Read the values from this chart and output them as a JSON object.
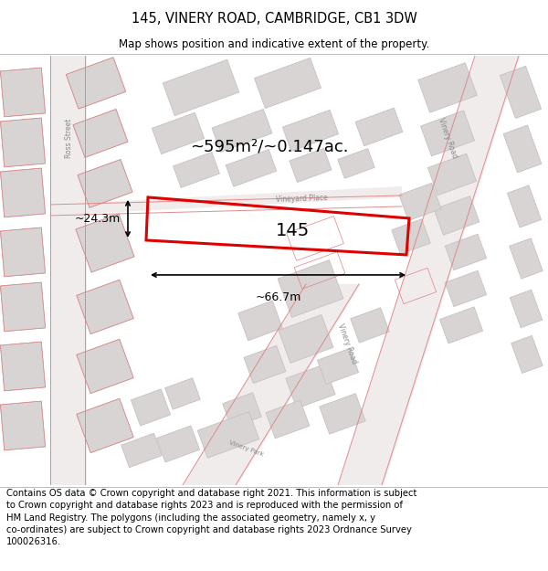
{
  "title": "145, VINERY ROAD, CAMBRIDGE, CB1 3DW",
  "subtitle": "Map shows position and indicative extent of the property.",
  "footer": "Contains OS data © Crown copyright and database right 2021. This information is subject\nto Crown copyright and database rights 2023 and is reproduced with the permission of\nHM Land Registry. The polygons (including the associated geometry, namely x, y\nco-ordinates) are subject to Crown copyright and database rights 2023 Ordnance Survey\n100026316.",
  "area_label": "~595m²/~0.147ac.",
  "property_number": "145",
  "width_label": "~66.7m",
  "height_label": "~24.3m",
  "map_bg": "#f5f0f0",
  "building_fill": "#d8d4d4",
  "building_edge": "#c8c0c0",
  "road_line": "#e08080",
  "property_color": "#dd0000",
  "title_fontsize": 10.5,
  "subtitle_fontsize": 8.5,
  "footer_fontsize": 7.2,
  "fig_width": 6.0,
  "fig_height": 6.25,
  "dpi": 100
}
